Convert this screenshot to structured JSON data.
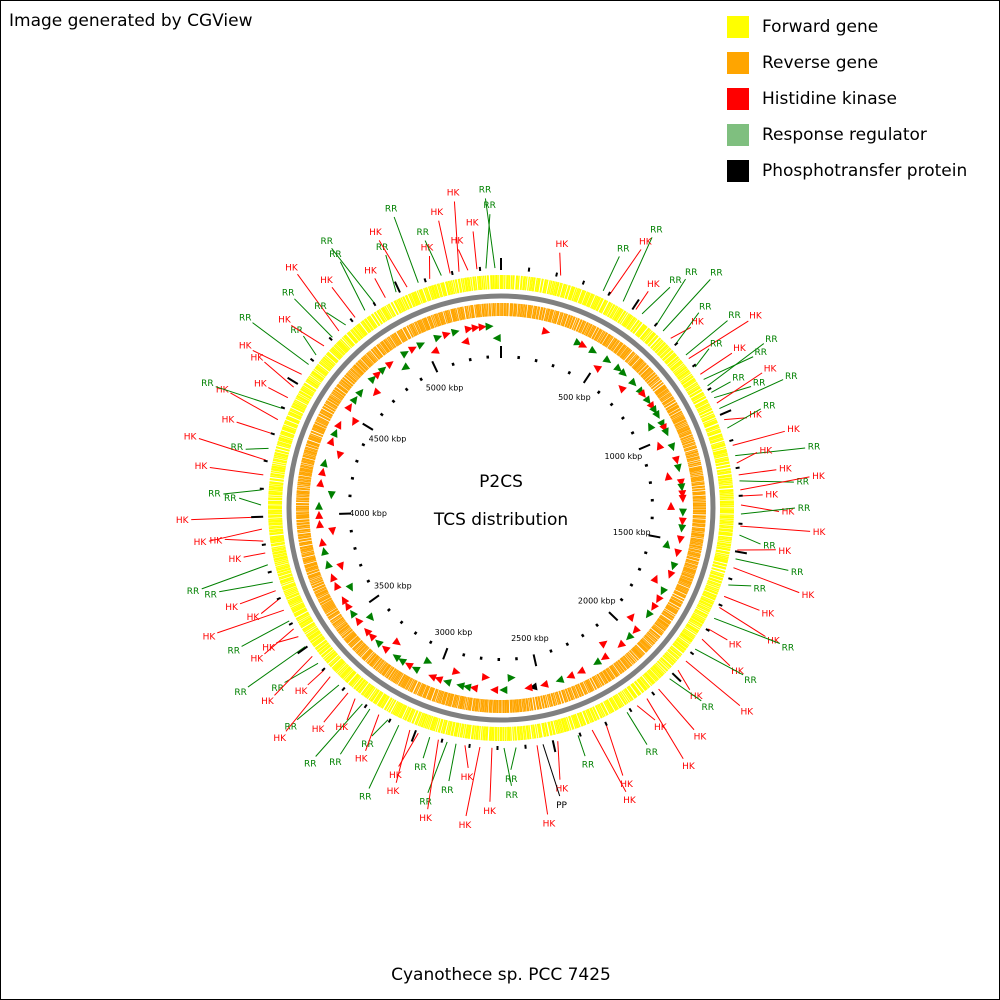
{
  "header": {
    "credit": "Image generated by CGView"
  },
  "legend": {
    "items": [
      {
        "label": "Forward gene",
        "color": "#ffff00"
      },
      {
        "label": "Reverse gene",
        "color": "#ffa500"
      },
      {
        "label": "Histidine kinase",
        "color": "#ff0000"
      },
      {
        "label": "Response regulator",
        "color": "#7fbf7f"
      },
      {
        "label": "Phosphotransfer protein",
        "color": "#000000"
      }
    ]
  },
  "map": {
    "title_line1": "P2CS",
    "title_line2": "TCS distribution",
    "organism": "Cyanothece sp. PCC 7425",
    "genome_length_kbp": 5375,
    "tick_labels": [
      {
        "kbp": 500,
        "label": "500 kbp"
      },
      {
        "kbp": 1000,
        "label": "1000 kbp"
      },
      {
        "kbp": 1500,
        "label": "1500 kbp"
      },
      {
        "kbp": 2000,
        "label": "2000 kbp"
      },
      {
        "kbp": 2500,
        "label": "2500 kbp"
      },
      {
        "kbp": 3000,
        "label": "3000 kbp"
      },
      {
        "kbp": 3500,
        "label": "3500 kbp"
      },
      {
        "kbp": 4000,
        "label": "4000 kbp"
      },
      {
        "kbp": 4500,
        "label": "4500 kbp"
      },
      {
        "kbp": 5000,
        "label": "5000 kbp"
      }
    ],
    "colors": {
      "HK": "#ff0000",
      "RR": "#008000",
      "PP": "#000000",
      "backbone": "#808080"
    },
    "genes": [
      {
        "pos": 0.04,
        "type": "HK",
        "strand": "+"
      },
      {
        "pos": 0.07,
        "type": "RR",
        "strand": "+"
      },
      {
        "pos": 0.075,
        "type": "HK",
        "strand": "+"
      },
      {
        "pos": 0.085,
        "type": "RR",
        "strand": "+"
      },
      {
        "pos": 0.095,
        "type": "HK",
        "strand": "-"
      },
      {
        "pos": 0.1,
        "type": "RR",
        "strand": "+"
      },
      {
        "pos": 0.112,
        "type": "RR",
        "strand": "+"
      },
      {
        "pos": 0.118,
        "type": "RR",
        "strand": "+"
      },
      {
        "pos": 0.125,
        "type": "HK",
        "strand": "-"
      },
      {
        "pos": 0.13,
        "type": "RR",
        "strand": "+"
      },
      {
        "pos": 0.14,
        "type": "RR",
        "strand": "+"
      },
      {
        "pos": 0.143,
        "type": "HK",
        "strand": "+"
      },
      {
        "pos": 0.15,
        "type": "RR",
        "strand": "+"
      },
      {
        "pos": 0.156,
        "type": "HK",
        "strand": "+"
      },
      {
        "pos": 0.16,
        "type": "RR",
        "strand": "+"
      },
      {
        "pos": 0.165,
        "type": "RR",
        "strand": "+"
      },
      {
        "pos": 0.17,
        "type": "RR",
        "strand": "-"
      },
      {
        "pos": 0.174,
        "type": "RR",
        "strand": "+"
      },
      {
        "pos": 0.178,
        "type": "HK",
        "strand": "+"
      },
      {
        "pos": 0.182,
        "type": "RR",
        "strand": "+"
      },
      {
        "pos": 0.19,
        "type": "HK",
        "strand": "-"
      },
      {
        "pos": 0.196,
        "type": "RR",
        "strand": "+"
      },
      {
        "pos": 0.208,
        "type": "HK",
        "strand": "+"
      },
      {
        "pos": 0.215,
        "type": "RR",
        "strand": "+"
      },
      {
        "pos": 0.22,
        "type": "HK",
        "strand": "-"
      },
      {
        "pos": 0.228,
        "type": "HK",
        "strand": "+"
      },
      {
        "pos": 0.232,
        "type": "RR",
        "strand": "+"
      },
      {
        "pos": 0.238,
        "type": "HK",
        "strand": "+"
      },
      {
        "pos": 0.242,
        "type": "HK",
        "strand": "+"
      },
      {
        "pos": 0.248,
        "type": "HK",
        "strand": "-"
      },
      {
        "pos": 0.254,
        "type": "RR",
        "strand": "+"
      },
      {
        "pos": 0.262,
        "type": "HK",
        "strand": "+"
      },
      {
        "pos": 0.268,
        "type": "RR",
        "strand": "+"
      },
      {
        "pos": 0.278,
        "type": "HK",
        "strand": "+"
      },
      {
        "pos": 0.284,
        "type": "RR",
        "strand": "-"
      },
      {
        "pos": 0.29,
        "type": "HK",
        "strand": "+"
      },
      {
        "pos": 0.302,
        "type": "RR",
        "strand": "+"
      },
      {
        "pos": 0.31,
        "type": "HK",
        "strand": "+"
      },
      {
        "pos": 0.318,
        "type": "HK",
        "strand": "-"
      },
      {
        "pos": 0.326,
        "type": "RR",
        "strand": "+"
      },
      {
        "pos": 0.334,
        "type": "HK",
        "strand": "+"
      },
      {
        "pos": 0.342,
        "type": "HK",
        "strand": "+"
      },
      {
        "pos": 0.35,
        "type": "RR",
        "strand": "+"
      },
      {
        "pos": 0.36,
        "type": "HK",
        "strand": "-"
      },
      {
        "pos": 0.368,
        "type": "HK",
        "strand": "+"
      },
      {
        "pos": 0.376,
        "type": "RR",
        "strand": "+"
      },
      {
        "pos": 0.386,
        "type": "HK",
        "strand": "+"
      },
      {
        "pos": 0.396,
        "type": "HK",
        "strand": "-"
      },
      {
        "pos": 0.404,
        "type": "HK",
        "strand": "+"
      },
      {
        "pos": 0.412,
        "type": "RR",
        "strand": "+"
      },
      {
        "pos": 0.428,
        "type": "HK",
        "strand": "+"
      },
      {
        "pos": 0.438,
        "type": "HK",
        "strand": "+"
      },
      {
        "pos": 0.448,
        "type": "RR",
        "strand": "+"
      },
      {
        "pos": 0.462,
        "type": "HK",
        "strand": "+"
      },
      {
        "pos": 0.472,
        "type": "PP",
        "strand": "+"
      },
      {
        "pos": 0.476,
        "type": "HK",
        "strand": "+"
      },
      {
        "pos": 0.49,
        "type": "RR",
        "strand": "-"
      },
      {
        "pos": 0.498,
        "type": "RR",
        "strand": "+"
      },
      {
        "pos": 0.506,
        "type": "HK",
        "strand": "+"
      },
      {
        "pos": 0.514,
        "type": "HK",
        "strand": "-"
      },
      {
        "pos": 0.524,
        "type": "HK",
        "strand": "+"
      },
      {
        "pos": 0.53,
        "type": "RR",
        "strand": "+"
      },
      {
        "pos": 0.536,
        "type": "RR",
        "strand": "+"
      },
      {
        "pos": 0.542,
        "type": "HK",
        "strand": "-"
      },
      {
        "pos": 0.548,
        "type": "RR",
        "strand": "+"
      },
      {
        "pos": 0.556,
        "type": "HK",
        "strand": "+"
      },
      {
        "pos": 0.562,
        "type": "HK",
        "strand": "+"
      },
      {
        "pos": 0.57,
        "type": "RR",
        "strand": "-"
      },
      {
        "pos": 0.578,
        "type": "RR",
        "strand": "+"
      },
      {
        "pos": 0.585,
        "type": "HK",
        "strand": "+"
      },
      {
        "pos": 0.592,
        "type": "RR",
        "strand": "+"
      },
      {
        "pos": 0.598,
        "type": "RR",
        "strand": "+"
      },
      {
        "pos": 0.604,
        "type": "HK",
        "strand": "-"
      },
      {
        "pos": 0.61,
        "type": "HK",
        "strand": "+"
      },
      {
        "pos": 0.618,
        "type": "RR",
        "strand": "+"
      },
      {
        "pos": 0.626,
        "type": "HK",
        "strand": "+"
      },
      {
        "pos": 0.632,
        "type": "HK",
        "strand": "+"
      },
      {
        "pos": 0.638,
        "type": "RR",
        "strand": "-"
      },
      {
        "pos": 0.644,
        "type": "HK",
        "strand": "+"
      },
      {
        "pos": 0.652,
        "type": "RR",
        "strand": "+"
      },
      {
        "pos": 0.66,
        "type": "HK",
        "strand": "+"
      },
      {
        "pos": 0.666,
        "type": "HK",
        "strand": "+"
      },
      {
        "pos": 0.672,
        "type": "RR",
        "strand": "-"
      },
      {
        "pos": 0.68,
        "type": "HK",
        "strand": "+"
      },
      {
        "pos": 0.688,
        "type": "HK",
        "strand": "+"
      },
      {
        "pos": 0.694,
        "type": "HK",
        "strand": "-"
      },
      {
        "pos": 0.7,
        "type": "RR",
        "strand": "+"
      },
      {
        "pos": 0.712,
        "type": "RR",
        "strand": "+"
      },
      {
        "pos": 0.72,
        "type": "HK",
        "strand": "+"
      },
      {
        "pos": 0.728,
        "type": "HK",
        "strand": "-"
      },
      {
        "pos": 0.736,
        "type": "HK",
        "strand": "+"
      },
      {
        "pos": 0.744,
        "type": "HK",
        "strand": "+"
      },
      {
        "pos": 0.752,
        "type": "RR",
        "strand": "+"
      },
      {
        "pos": 0.762,
        "type": "RR",
        "strand": "-"
      },
      {
        "pos": 0.772,
        "type": "HK",
        "strand": "+"
      },
      {
        "pos": 0.782,
        "type": "HK",
        "strand": "+"
      },
      {
        "pos": 0.79,
        "type": "RR",
        "strand": "+"
      },
      {
        "pos": 0.8,
        "type": "HK",
        "strand": "-"
      },
      {
        "pos": 0.81,
        "type": "HK",
        "strand": "+"
      },
      {
        "pos": 0.818,
        "type": "RR",
        "strand": "+"
      },
      {
        "pos": 0.826,
        "type": "HK",
        "strand": "+"
      },
      {
        "pos": 0.834,
        "type": "HK",
        "strand": "-"
      },
      {
        "pos": 0.844,
        "type": "HK",
        "strand": "+"
      },
      {
        "pos": 0.852,
        "type": "RR",
        "strand": "+"
      },
      {
        "pos": 0.86,
        "type": "RR",
        "strand": "+"
      },
      {
        "pos": 0.868,
        "type": "HK",
        "strand": "-"
      },
      {
        "pos": 0.876,
        "type": "RR",
        "strand": "+"
      },
      {
        "pos": 0.882,
        "type": "HK",
        "strand": "+"
      },
      {
        "pos": 0.888,
        "type": "RR",
        "strand": "+"
      },
      {
        "pos": 0.896,
        "type": "HK",
        "strand": "+"
      },
      {
        "pos": 0.904,
        "type": "RR",
        "strand": "-"
      },
      {
        "pos": 0.912,
        "type": "RR",
        "strand": "+"
      },
      {
        "pos": 0.92,
        "type": "HK",
        "strand": "+"
      },
      {
        "pos": 0.928,
        "type": "RR",
        "strand": "+"
      },
      {
        "pos": 0.936,
        "type": "HK",
        "strand": "-"
      },
      {
        "pos": 0.944,
        "type": "RR",
        "strand": "+"
      },
      {
        "pos": 0.952,
        "type": "HK",
        "strand": "+"
      },
      {
        "pos": 0.96,
        "type": "RR",
        "strand": "+"
      },
      {
        "pos": 0.966,
        "type": "HK",
        "strand": "-"
      },
      {
        "pos": 0.972,
        "type": "HK",
        "strand": "+"
      },
      {
        "pos": 0.978,
        "type": "HK",
        "strand": "+"
      },
      {
        "pos": 0.984,
        "type": "HK",
        "strand": "+"
      },
      {
        "pos": 0.99,
        "type": "RR",
        "strand": "+"
      },
      {
        "pos": 0.996,
        "type": "RR",
        "strand": "-"
      }
    ]
  }
}
